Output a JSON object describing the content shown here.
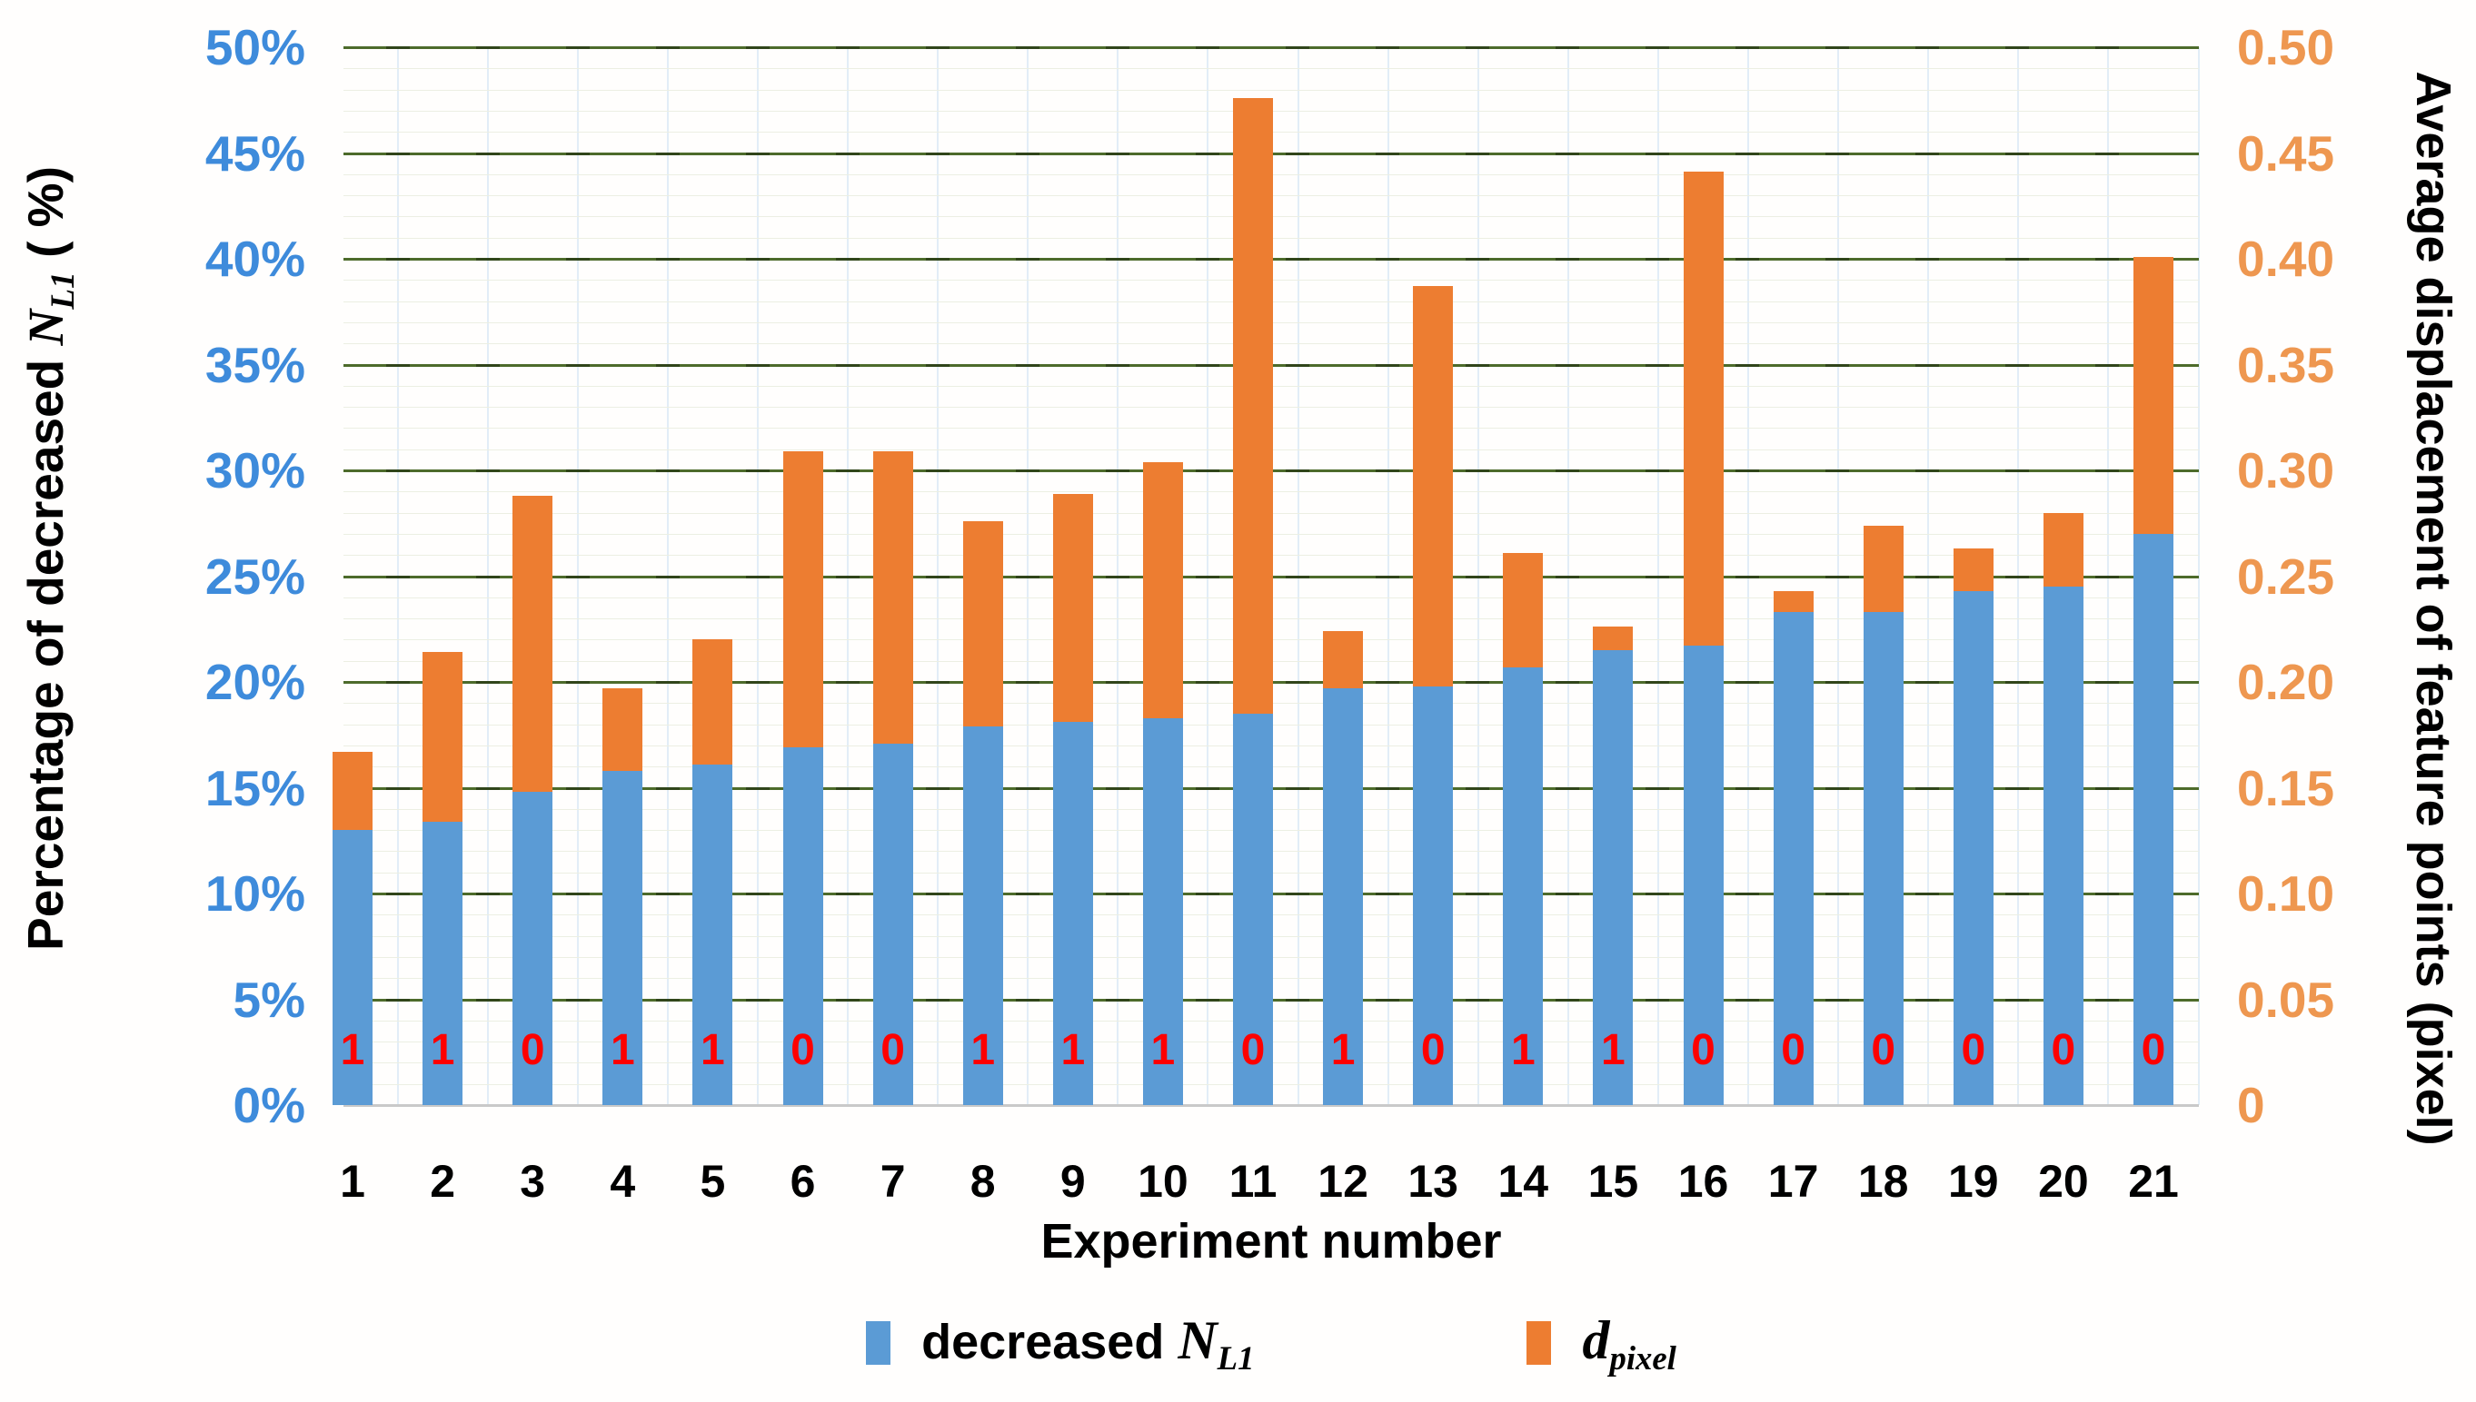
{
  "chart_data": {
    "type": "bar",
    "subtype": "stacked-dual-axis",
    "categories": [
      1,
      2,
      3,
      4,
      5,
      6,
      7,
      8,
      9,
      10,
      11,
      12,
      13,
      14,
      15,
      16,
      17,
      18,
      19,
      20,
      21
    ],
    "series": [
      {
        "name": "decreased N_L1",
        "axis": "left",
        "unit": "%",
        "color": "#5b9bd5",
        "values": [
          13.0,
          13.4,
          14.8,
          15.8,
          16.1,
          16.9,
          17.1,
          17.9,
          18.1,
          18.3,
          18.5,
          19.7,
          19.8,
          20.7,
          21.5,
          21.7,
          23.3,
          23.3,
          24.3,
          24.5,
          27.0
        ]
      },
      {
        "name": "d_pixel",
        "axis": "right",
        "unit": "pixel",
        "color": "#ed7d31",
        "values": [
          0.037,
          0.08,
          0.14,
          0.039,
          0.059,
          0.14,
          0.138,
          0.097,
          0.108,
          0.121,
          0.291,
          0.027,
          0.189,
          0.054,
          0.011,
          0.224,
          0.01,
          0.042,
          0.02,
          0.035,
          0.131
        ]
      }
    ],
    "stack_top_percent": [
      16.7,
      21.4,
      28.8,
      19.7,
      22.0,
      30.9,
      30.9,
      27.6,
      28.9,
      30.4,
      47.6,
      22.4,
      38.7,
      26.1,
      22.6,
      44.1,
      24.3,
      27.4,
      26.3,
      28.0,
      40.1
    ],
    "bar_base_flags": [
      "1",
      "1",
      "0",
      "1",
      "1",
      "0",
      "0",
      "1",
      "1",
      "1",
      "0",
      "1",
      "0",
      "1",
      "1",
      "0",
      "0",
      "0",
      "0",
      "0",
      "0"
    ],
    "flag_color": "#fe0000",
    "grid": {
      "major_color": "#4d6b2b",
      "minor_color": "#ecefe3",
      "major_step_percent": 5,
      "minor_step_percent": 1
    },
    "left_axis": {
      "range_percent": [
        0,
        50
      ],
      "ticks": [
        "50%",
        "45%",
        "40%",
        "35%",
        "30%",
        "25%",
        "20%",
        "15%",
        "10%",
        "5%",
        "0%"
      ],
      "tick_color": "#3e8bdb",
      "title": {
        "prefix": "Percentage of decreased ",
        "symbol": "N",
        "sub": "L1",
        "suffix": " ( %)"
      }
    },
    "right_axis": {
      "range": [
        0,
        0.5
      ],
      "ticks": [
        "0.50",
        "0.45",
        "0.40",
        "0.35",
        "0.30",
        "0.25",
        "0.20",
        "0.15",
        "0.10",
        "0.05",
        "0"
      ],
      "tick_color": "#ee9750",
      "title": {
        "text": "Average displacement of feature points (pixel)"
      }
    },
    "x_axis": {
      "title": "Experiment number",
      "tick_labels": [
        "1",
        "2",
        "3",
        "4",
        "5",
        "6",
        "7",
        "8",
        "9",
        "10",
        "11",
        "12",
        "13",
        "14",
        "15",
        "16",
        "17",
        "18",
        "19",
        "20",
        "21"
      ]
    },
    "legend": {
      "position": "bottom",
      "items": [
        {
          "swatch_color": "#5b9bd5",
          "text": "decreased ",
          "symbol": "N",
          "sub": "L1"
        },
        {
          "swatch_color": "#ed7d31",
          "text": "",
          "symbol": "d",
          "sub": "pixel"
        }
      ]
    }
  }
}
